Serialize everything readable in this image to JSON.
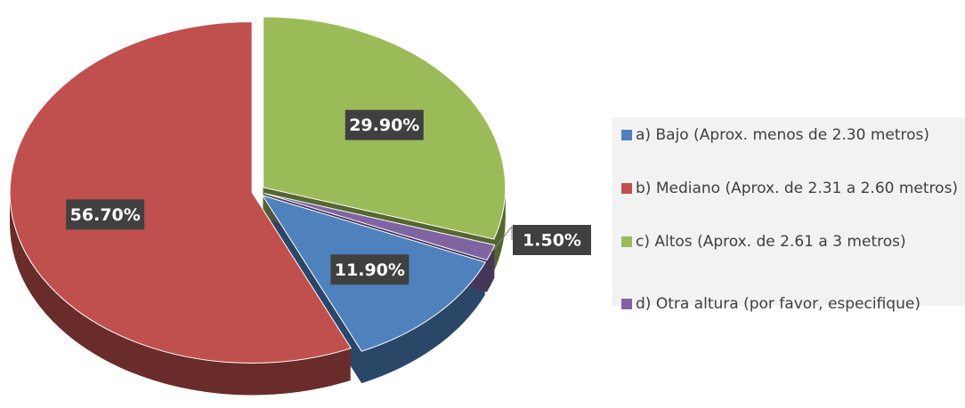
{
  "chart_data": {
    "type": "pie",
    "categories": [
      "a) Bajo (Aprox. menos de 2.30 metros)",
      "b) Mediano (Aprox. de 2.31 a 2.60 metros)",
      "c) Altos (Aprox. de 2.61 a 3 metros)",
      "d) Otra altura (por favor, especifique)"
    ],
    "values": [
      11.9,
      56.7,
      29.9,
      1.5
    ],
    "value_labels": [
      "11.90%",
      "56.70%",
      "29.90%",
      "1.50%"
    ],
    "colors": [
      "#4f81bd",
      "#c0504d",
      "#9bbb59",
      "#8064a2"
    ],
    "legend": "right"
  }
}
